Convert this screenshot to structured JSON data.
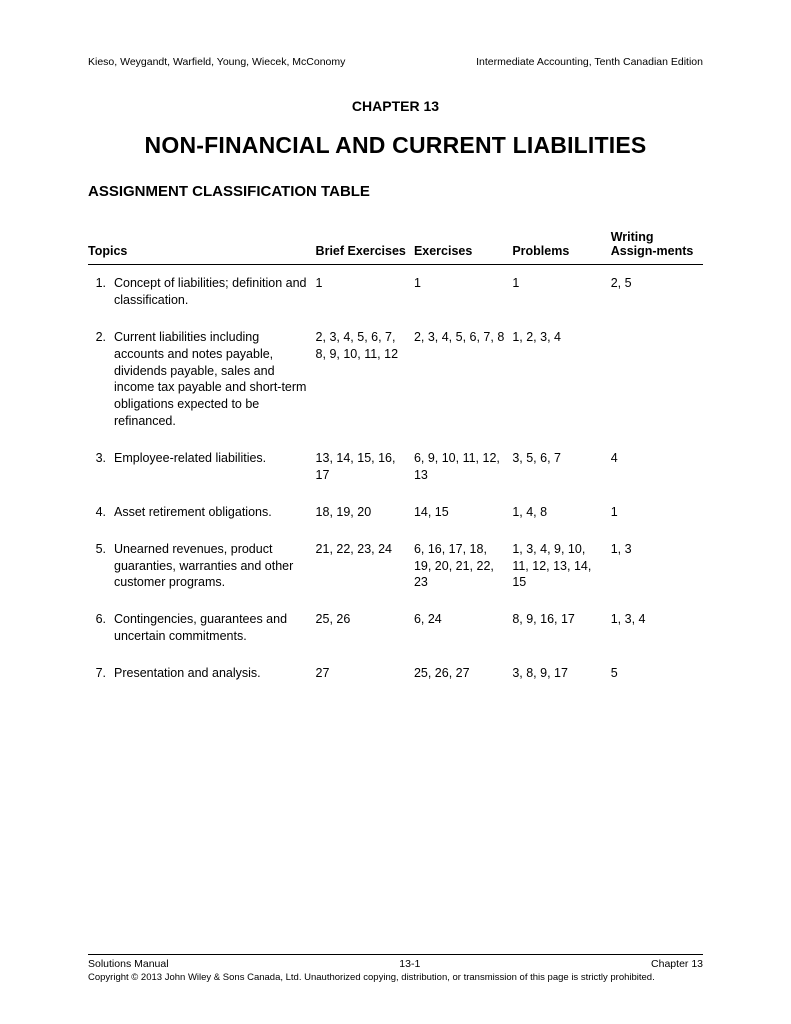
{
  "header": {
    "left": "Kieso, Weygandt, Warfield, Young, Wiecek, McConomy",
    "right": "Intermediate Accounting, Tenth Canadian Edition"
  },
  "chapter_label": "CHAPTER 13",
  "main_title": "NON-FINANCIAL AND CURRENT LIABILITIES",
  "sub_title": "ASSIGNMENT CLASSIFICATION TABLE",
  "columns": {
    "topics": "Topics",
    "brief": "Brief Exercises",
    "exercises": "Exercises",
    "problems": "Problems",
    "writing": "Writing Assign-ments"
  },
  "rows": [
    {
      "num": "1.",
      "topic": "Concept of liabilities; definition and classification.",
      "brief": "1",
      "exercises": "1",
      "problems": "1",
      "writing": "2, 5"
    },
    {
      "num": "2.",
      "topic": "Current liabilities including accounts and notes payable, dividends payable, sales and income tax payable and short-term obligations expected to be refinanced.",
      "brief": "2, 3, 4, 5, 6, 7, 8, 9, 10, 11, 12",
      "exercises": "2, 3, 4, 5, 6, 7, 8",
      "problems": "1, 2, 3, 4",
      "writing": ""
    },
    {
      "num": "3.",
      "topic": "Employee-related liabilities.",
      "brief": "13, 14, 15, 16, 17",
      "exercises": "6, 9, 10, 11, 12, 13",
      "problems": "3, 5, 6, 7",
      "writing": "4"
    },
    {
      "num": "4.",
      "topic": "Asset retirement obligations.",
      "brief": "18, 19, 20",
      "exercises": "14, 15",
      "problems": "1, 4, 8",
      "writing": "1"
    },
    {
      "num": "5.",
      "topic": "Unearned revenues, product guaranties, warranties and other customer programs.",
      "brief": "21, 22, 23, 24",
      "exercises": "6, 16, 17, 18, 19, 20, 21, 22, 23",
      "problems": "1, 3, 4, 9, 10, 11, 12, 13, 14, 15",
      "writing": "1, 3"
    },
    {
      "num": "6.",
      "topic": "Contingencies, guarantees and uncertain commitments.",
      "brief": "25, 26",
      "exercises": "6, 24",
      "problems": "8, 9, 16, 17",
      "writing": "1, 3, 4"
    },
    {
      "num": "7.",
      "topic": "Presentation and analysis.",
      "brief": "27",
      "exercises": "25, 26, 27",
      "problems": "3, 8, 9, 17",
      "writing": "5"
    }
  ],
  "footer": {
    "left": "Solutions Manual",
    "center": "13-1",
    "right": "Chapter 13",
    "copyright": "Copyright © 2013 John Wiley & Sons Canada, Ltd. Unauthorized copying, distribution, or transmission of this page is strictly prohibited."
  }
}
